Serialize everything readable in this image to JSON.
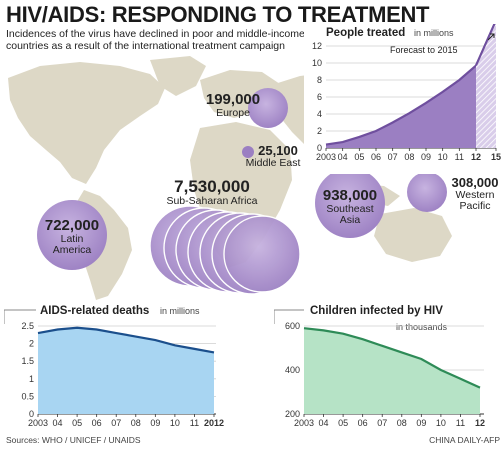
{
  "title": "HIV/AIDS: RESPONDING TO TREATMENT",
  "intro": "Incidences of the virus have declined in poor and middle-income countries as a result of the international treatment campaign",
  "regions": [
    {
      "value": "199,000",
      "name": "Europe"
    },
    {
      "value": "25,100",
      "name": "Middle East"
    },
    {
      "value": "7,530,000",
      "name": "Sub-Saharan Africa"
    },
    {
      "value": "938,000",
      "name": "Southeast Asia"
    },
    {
      "value": "308,000",
      "name": "Western Pacific"
    },
    {
      "value": "722,000",
      "name": "Latin America"
    }
  ],
  "colors": {
    "purple": "#9B7FC2",
    "purple_dark": "#6F4F9E",
    "map_land": "#DDD8C6",
    "blue_fill": "#A8D5F2",
    "blue_line": "#1B4F8C",
    "green_fill": "#B6E3C6",
    "green_line": "#2E8B57"
  },
  "chart_data": [
    {
      "type": "area",
      "title": "People treated",
      "unit_note": "in millions",
      "annotation": "Forecast to 2015",
      "x_labels": [
        "2003",
        "04",
        "05",
        "06",
        "07",
        "08",
        "09",
        "10",
        "11",
        "12",
        "15"
      ],
      "series": [
        {
          "values": [
            0.4,
            0.7,
            1.3,
            2.0,
            3.0,
            4.1,
            5.3,
            6.6,
            8.0,
            9.7,
            15.0
          ]
        }
      ],
      "forecast_from_index": 9,
      "ylim": [
        0,
        12
      ],
      "y_ticks": [
        "0",
        "2",
        "4",
        "6",
        "8",
        "10",
        "12"
      ]
    },
    {
      "type": "area",
      "title": "AIDS-related deaths",
      "unit_note": "in millions",
      "x_labels": [
        "2003",
        "04",
        "05",
        "06",
        "07",
        "08",
        "09",
        "10",
        "11",
        "2012"
      ],
      "series": [
        {
          "values": [
            2.3,
            2.4,
            2.45,
            2.4,
            2.3,
            2.2,
            2.1,
            1.95,
            1.85,
            1.75
          ]
        }
      ],
      "ylim": [
        0,
        2.5
      ],
      "y_ticks": [
        "0",
        "0.5",
        "1",
        "1.5",
        "2",
        "2.5"
      ]
    },
    {
      "type": "area",
      "title": "Children infected by HIV",
      "unit_note": "in thousands",
      "x_labels": [
        "2003",
        "04",
        "05",
        "06",
        "07",
        "08",
        "09",
        "10",
        "11",
        "12"
      ],
      "series": [
        {
          "values": [
            590,
            580,
            565,
            540,
            510,
            480,
            450,
            400,
            360,
            320
          ]
        }
      ],
      "ylim": [
        200,
        600
      ],
      "y_ticks": [
        "200",
        "400",
        "600"
      ]
    }
  ],
  "footer": {
    "sources": "Sources: WHO / UNICEF / UNAIDS",
    "credit": "CHINA DAILY-AFP"
  }
}
